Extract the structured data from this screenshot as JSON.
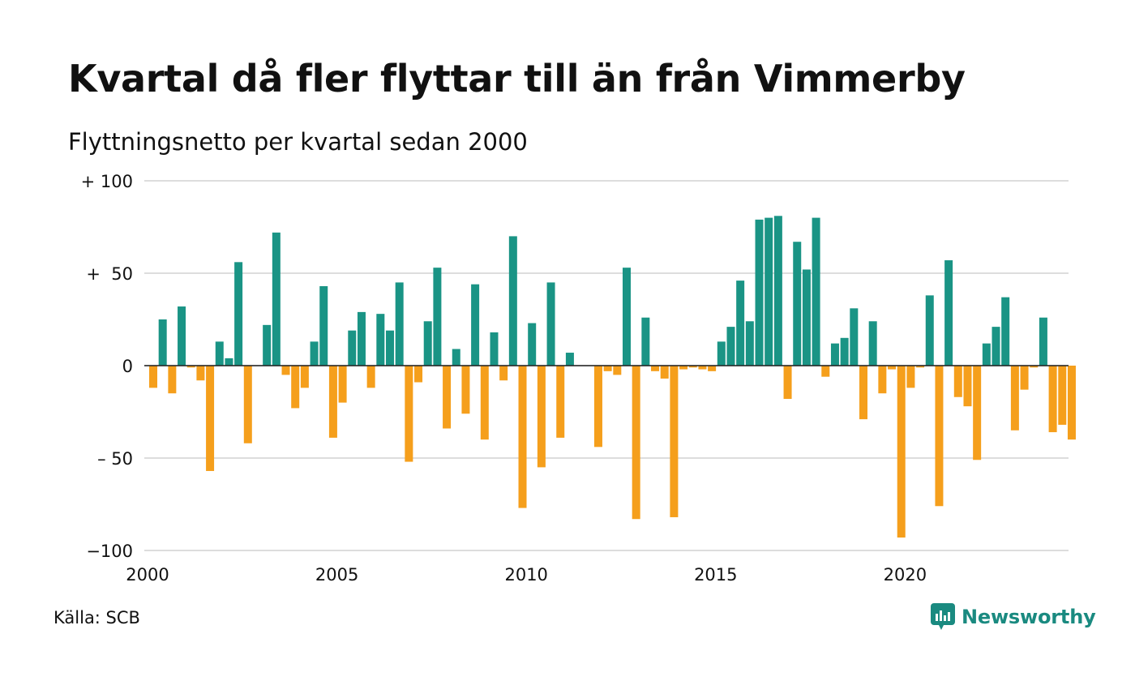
{
  "title": "Kvartal då fler flyttar till än från Vimmerby",
  "subtitle": "Flyttningsnetto per kvartal sedan 2000",
  "source": "Källa: SCB",
  "brand": {
    "name": "Newsworthy",
    "icon": "newsworthy-logo-icon"
  },
  "colors": {
    "positive": "#1a9485",
    "negative": "#f59f1c",
    "grid": "#dddddd",
    "brand": "#1a8a80"
  },
  "chart_data": {
    "type": "bar",
    "title": "Kvartal då fler flyttar till än från Vimmerby",
    "subtitle": "Flyttningsnetto per kvartal sedan 2000",
    "x_start": "2000 Q1",
    "x_tick_labels": [
      "2000",
      "2005",
      "2010",
      "2015",
      "2020"
    ],
    "y_tick_labels": [
      "+ 100",
      "+  50",
      "0",
      "– 50",
      "−100"
    ],
    "y_ticks": [
      100,
      50,
      0,
      -50,
      -100
    ],
    "ylim": [
      -100,
      100
    ],
    "grid": true,
    "values": [
      -12,
      25,
      -15,
      32,
      -1,
      -8,
      -57,
      13,
      4,
      56,
      -42,
      0,
      22,
      72,
      -5,
      -23,
      -12,
      13,
      43,
      -39,
      -20,
      19,
      29,
      -12,
      28,
      19,
      45,
      -52,
      -9,
      24,
      53,
      -34,
      9,
      -26,
      44,
      -40,
      18,
      -8,
      70,
      -77,
      23,
      -55,
      45,
      -39,
      7,
      0,
      0,
      -44,
      -3,
      -5,
      53,
      -83,
      26,
      -3,
      -7,
      -82,
      -2,
      -1,
      -2,
      -3,
      13,
      21,
      46,
      24,
      79,
      80,
      81,
      -18,
      67,
      52,
      80,
      -6,
      12,
      15,
      31,
      -29,
      24,
      -15,
      -2,
      -93,
      -12,
      -1,
      38,
      -76,
      57,
      -17,
      -22,
      -51,
      12,
      21,
      37,
      -35,
      -13,
      -1,
      26,
      -36,
      -32,
      -40
    ]
  }
}
